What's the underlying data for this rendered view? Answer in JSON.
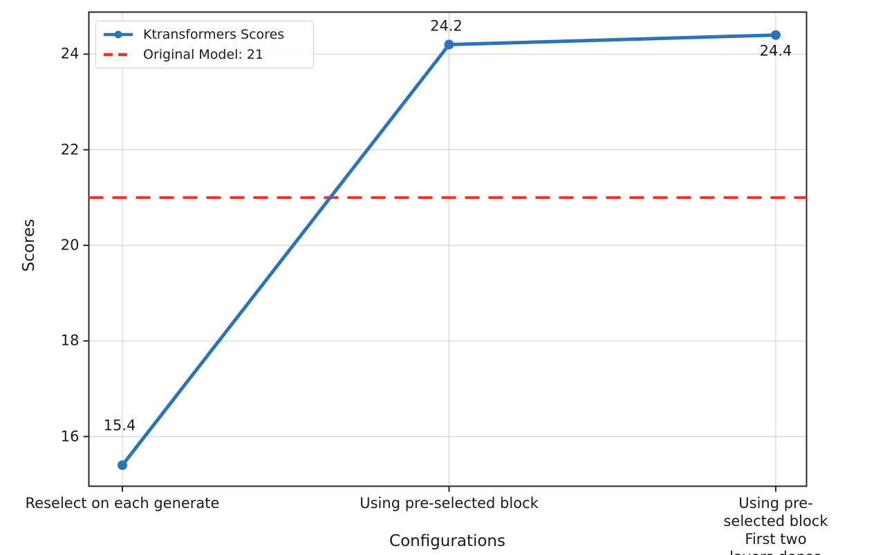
{
  "chart_data": {
    "type": "line",
    "title": "",
    "xlabel": "Configurations",
    "ylabel": "Scores",
    "categories": [
      "Reselect on each generate",
      "Using pre-selected block",
      "Using pre-selected block\nFirst two layers dense"
    ],
    "series": [
      {
        "name": "Ktransformers Scores",
        "values": [
          15.4,
          24.2,
          24.4
        ],
        "color": "#2e74b5",
        "marker": "circle",
        "line_style": "solid"
      }
    ],
    "reference_line": {
      "name": "Original Model: 21",
      "value": 21,
      "color": "#e93529",
      "style": "dashed"
    },
    "point_labels": [
      "15.4",
      "24.2",
      "24.4"
    ],
    "yticks": [
      16,
      18,
      20,
      22,
      24
    ],
    "ylim": [
      14.96,
      24.88
    ],
    "grid": true,
    "grid_color": "#cccccc",
    "spine_color": "#262626",
    "legend_position": "upper left"
  }
}
